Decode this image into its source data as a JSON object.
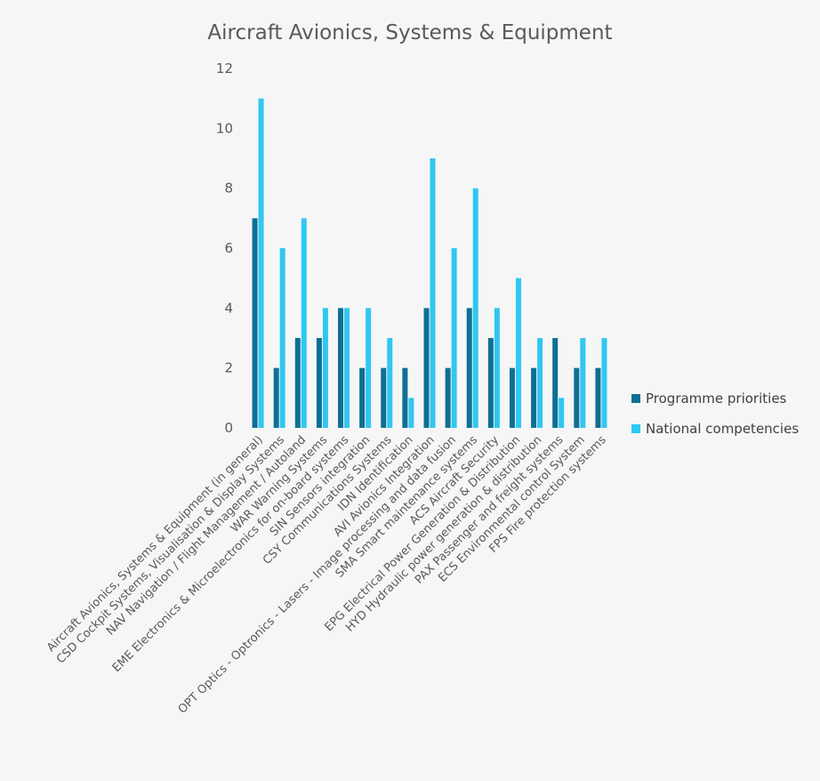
{
  "chart_data": {
    "type": "bar",
    "title": "Aircraft Avionics, Systems & Equipment",
    "xlabel": "",
    "ylabel": "",
    "ylim": [
      0,
      12
    ],
    "yticks": [
      0,
      2,
      4,
      6,
      8,
      10,
      12
    ],
    "grid": false,
    "legend_position": "right",
    "categories": [
      "Aircraft Avionics, Systems & Equipment (in general)",
      "CSD Cockpit Systems, Visualisation & Display Systems",
      "NAV Navigation / Flight Management / Autoland",
      "WAR Warning Systems",
      "EME Electronics & Microelectronics for on-board systems",
      "SIN Sensors integration",
      "CSY Communications Systems",
      "IDN Identification",
      "AVI Avionics Integration",
      "OPT Optics - Optronics - Lasers - Image processing and data fusion",
      "SMA Smart maintenance systems",
      "ACS Aircraft Security",
      "EPG Electrical Power Generation & Distribution",
      "HYD Hydraulic power generation & distribution",
      "PAX Passenger and freight systems",
      "ECS Environmental control System",
      "FPS Fire protection systems"
    ],
    "series": [
      {
        "name": "Programme priorities",
        "color": "#0e6f94",
        "values": [
          7,
          2,
          3,
          3,
          4,
          2,
          2,
          2,
          4,
          2,
          4,
          3,
          2,
          2,
          3,
          2,
          2
        ]
      },
      {
        "name": "National competencies",
        "color": "#2fc7f2",
        "values": [
          11,
          6,
          7,
          4,
          4,
          4,
          3,
          1,
          9,
          6,
          8,
          4,
          5,
          3,
          1,
          3,
          3
        ]
      }
    ]
  }
}
